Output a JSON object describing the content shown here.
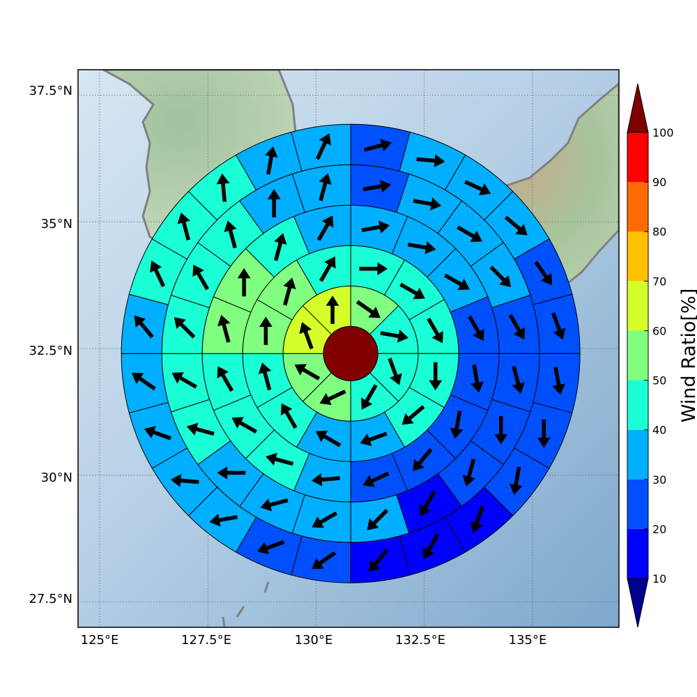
{
  "map": {
    "lon_range": [
      124.5,
      137.0
    ],
    "lat_range": [
      27.0,
      38.0
    ],
    "lon_ticks": [
      "125°E",
      "127.5°E",
      "130°E",
      "132.5°E",
      "135°E"
    ],
    "lat_ticks": [
      "37.5°N",
      "35°N",
      "32.5°N",
      "30°N",
      "27.5°N"
    ],
    "grid": true,
    "coastline_color": "#808080",
    "background": "shaded-relief-terrain"
  },
  "colorbar": {
    "title": "Wind Ratio[%]",
    "labels": [
      "10",
      "20",
      "30",
      "40",
      "50",
      "60",
      "70",
      "80",
      "90",
      "100"
    ],
    "colors": [
      "#00008F",
      "#0000FF",
      "#0050FF",
      "#00AFFF",
      "#1AFFD5",
      "#80FF80",
      "#D5FF2A",
      "#FFC000",
      "#FF6A00",
      "#FF0000",
      "#800000"
    ],
    "extend": "both"
  },
  "chart_data": {
    "type": "polar-grid",
    "center": {
      "lon": 130.8,
      "lat": 32.4
    },
    "title": "",
    "value_unit": "Wind Ratio[%]",
    "center_value": 100,
    "ring_sectors": [
      8,
      12,
      16,
      20,
      24
    ],
    "rings": [
      {
        "ring": 1,
        "values": [
          53,
          48,
          41,
          44,
          52,
          59,
          64,
          66
        ],
        "arrow_dirs": [
          125,
          100,
          160,
          210,
          245,
          300,
          340,
          0
        ]
      },
      {
        "ring": 2,
        "values": [
          45,
          43,
          41,
          42,
          42,
          38,
          35,
          48,
          48,
          57,
          57,
          47
        ],
        "arrow_dirs": [
          90,
          120,
          150,
          180,
          230,
          250,
          300,
          330,
          345,
          0,
          15,
          30
        ]
      },
      {
        "ring": 3,
        "values": [
          34,
          36,
          35,
          25,
          25,
          25,
          25,
          25,
          38,
          42,
          43,
          47,
          51,
          51,
          47,
          34
        ],
        "arrow_dirs": [
          80,
          100,
          120,
          150,
          170,
          190,
          220,
          245,
          265,
          285,
          300,
          330,
          345,
          0,
          15,
          30
        ]
      },
      {
        "ring": 4,
        "values": [
          23,
          32,
          33,
          30,
          28,
          24,
          24,
          24,
          16,
          32,
          34,
          35,
          38,
          41,
          42,
          45,
          45,
          43,
          38,
          32
        ],
        "arrow_dirs": [
          80,
          100,
          120,
          135,
          150,
          165,
          180,
          195,
          210,
          225,
          240,
          255,
          270,
          285,
          300,
          315,
          330,
          345,
          0,
          15
        ]
      },
      {
        "ring": 5,
        "values": [
          24,
          31,
          33,
          33,
          25,
          24,
          24,
          24,
          23,
          16,
          16,
          16,
          23,
          24,
          31,
          33,
          35,
          36,
          37,
          41,
          42,
          42,
          37,
          33
        ],
        "arrow_dirs": [
          75,
          95,
          115,
          130,
          145,
          160,
          170,
          180,
          190,
          200,
          210,
          220,
          235,
          250,
          260,
          275,
          290,
          305,
          320,
          335,
          345,
          355,
          10,
          25
        ]
      }
    ]
  }
}
